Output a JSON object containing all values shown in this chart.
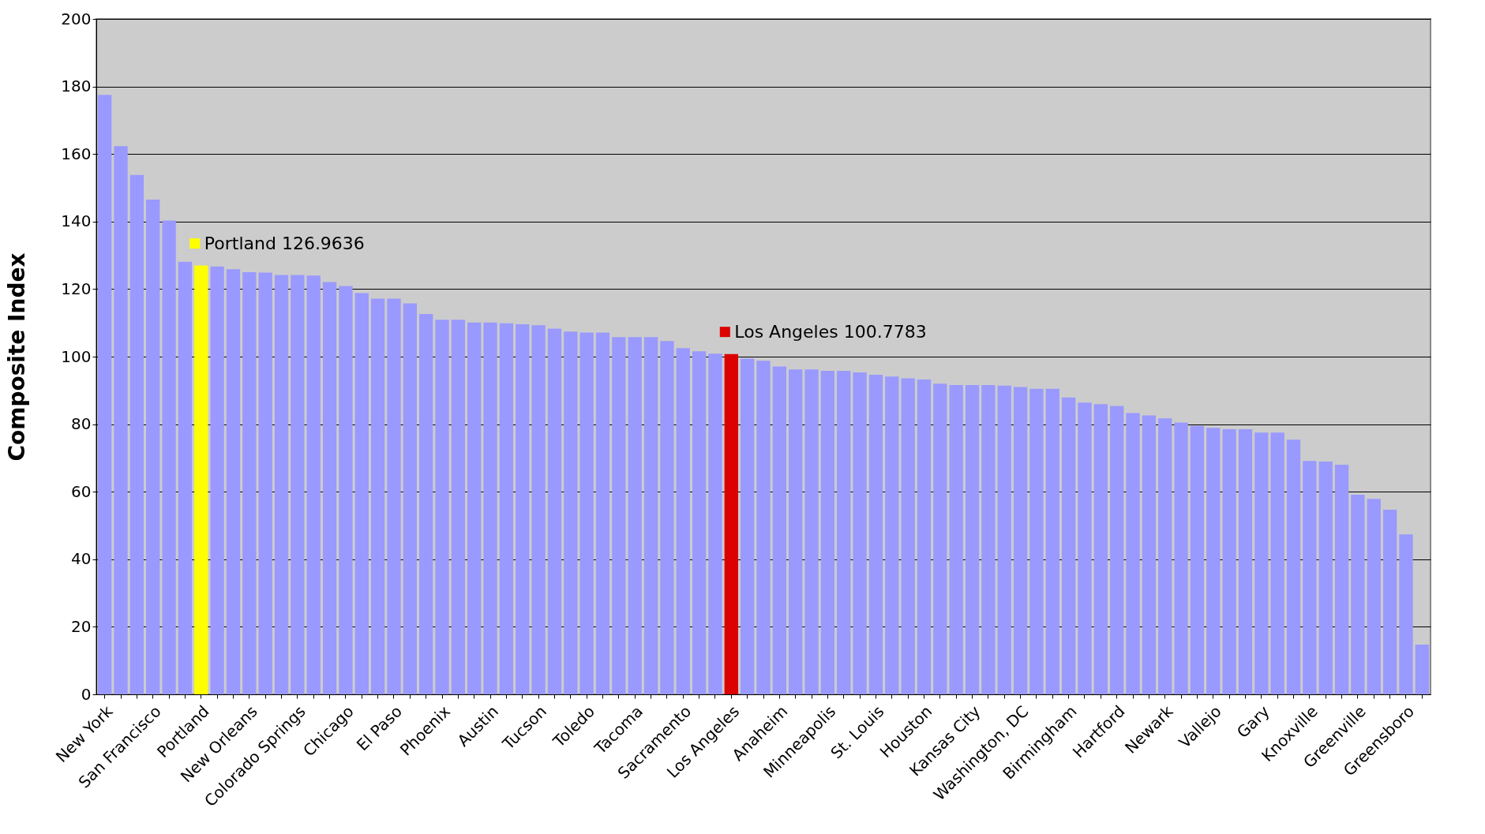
{
  "chart_data": {
    "type": "bar",
    "ylabel": "Composite Index",
    "categories": [
      "New York",
      null,
      null,
      "San Francisco",
      null,
      null,
      "Portland",
      null,
      null,
      "New Orleans",
      null,
      null,
      "Colorado Springs",
      null,
      null,
      "Chicago",
      null,
      null,
      "El Paso",
      null,
      null,
      "Phoenix",
      null,
      null,
      "Austin",
      null,
      null,
      "Tucson",
      null,
      null,
      "Toledo",
      null,
      null,
      "Tacoma",
      null,
      null,
      "Sacramento",
      null,
      null,
      "Los Angeles",
      null,
      null,
      "Anaheim",
      null,
      null,
      "Minneapolis",
      null,
      null,
      "St. Louis",
      null,
      null,
      "Houston",
      null,
      null,
      "Kansas City",
      null,
      null,
      "Washington, DC",
      null,
      null,
      "Birmingham",
      null,
      null,
      "Hartford",
      null,
      null,
      "Newark",
      null,
      null,
      "Vallejo",
      null,
      null,
      "Gary",
      null,
      null,
      "Knoxville",
      null,
      null,
      "Greenville",
      null,
      null,
      "Greensboro",
      null
    ],
    "values": [
      177.5,
      162.3,
      153.8,
      146.5,
      140.3,
      128.1,
      126.9636,
      126.7,
      125.9,
      125.0,
      124.9,
      124.2,
      124.2,
      124.0,
      122.1,
      120.9,
      118.8,
      117.2,
      117.2,
      115.8,
      112.6,
      110.9,
      110.9,
      110.1,
      110.1,
      109.9,
      109.6,
      109.3,
      108.3,
      107.4,
      107.1,
      107.1,
      105.8,
      105.8,
      105.8,
      104.6,
      102.5,
      101.6,
      100.9,
      100.7783,
      99.4,
      98.8,
      97.1,
      96.2,
      96.2,
      95.8,
      95.8,
      95.3,
      94.6,
      94.1,
      93.6,
      93.2,
      92.0,
      91.6,
      91.6,
      91.6,
      91.4,
      91.0,
      90.5,
      90.5,
      87.9,
      86.4,
      85.9,
      85.4,
      83.3,
      82.6,
      81.7,
      80.5,
      79.5,
      78.9,
      78.5,
      78.5,
      77.5,
      77.5,
      75.4,
      69.1,
      68.9,
      68.0,
      59.1,
      57.9,
      54.7,
      47.4,
      14.7
    ],
    "colors": [
      "#9999ff",
      "#9999ff",
      "#9999ff",
      "#9999ff",
      "#9999ff",
      "#9999ff",
      "#ffff00",
      "#9999ff",
      "#9999ff",
      "#9999ff",
      "#9999ff",
      "#9999ff",
      "#9999ff",
      "#9999ff",
      "#9999ff",
      "#9999ff",
      "#9999ff",
      "#9999ff",
      "#9999ff",
      "#9999ff",
      "#9999ff",
      "#9999ff",
      "#9999ff",
      "#9999ff",
      "#9999ff",
      "#9999ff",
      "#9999ff",
      "#9999ff",
      "#9999ff",
      "#9999ff",
      "#9999ff",
      "#9999ff",
      "#9999ff",
      "#9999ff",
      "#9999ff",
      "#9999ff",
      "#9999ff",
      "#9999ff",
      "#9999ff",
      "#dd0000",
      "#9999ff",
      "#9999ff",
      "#9999ff",
      "#9999ff",
      "#9999ff",
      "#9999ff",
      "#9999ff",
      "#9999ff",
      "#9999ff",
      "#9999ff",
      "#9999ff",
      "#9999ff",
      "#9999ff",
      "#9999ff",
      "#9999ff",
      "#9999ff",
      "#9999ff",
      "#9999ff",
      "#9999ff",
      "#9999ff",
      "#9999ff",
      "#9999ff",
      "#9999ff",
      "#9999ff",
      "#9999ff",
      "#9999ff",
      "#9999ff",
      "#9999ff",
      "#9999ff",
      "#9999ff",
      "#9999ff",
      "#9999ff",
      "#9999ff",
      "#9999ff",
      "#9999ff",
      "#9999ff",
      "#9999ff",
      "#9999ff",
      "#9999ff",
      "#9999ff",
      "#9999ff",
      "#9999ff",
      "#9999ff"
    ],
    "ylim": [
      0,
      200
    ],
    "yticks": [
      0,
      20,
      40,
      60,
      80,
      100,
      120,
      140,
      160,
      180,
      200
    ],
    "grid": "y",
    "annotations": [
      {
        "text": "Portland 126.9636",
        "x": "Portland",
        "y": 126.9636
      },
      {
        "text": "Los Angeles 100.7783",
        "x": "Los Angeles",
        "y": 100.7783
      }
    ]
  }
}
